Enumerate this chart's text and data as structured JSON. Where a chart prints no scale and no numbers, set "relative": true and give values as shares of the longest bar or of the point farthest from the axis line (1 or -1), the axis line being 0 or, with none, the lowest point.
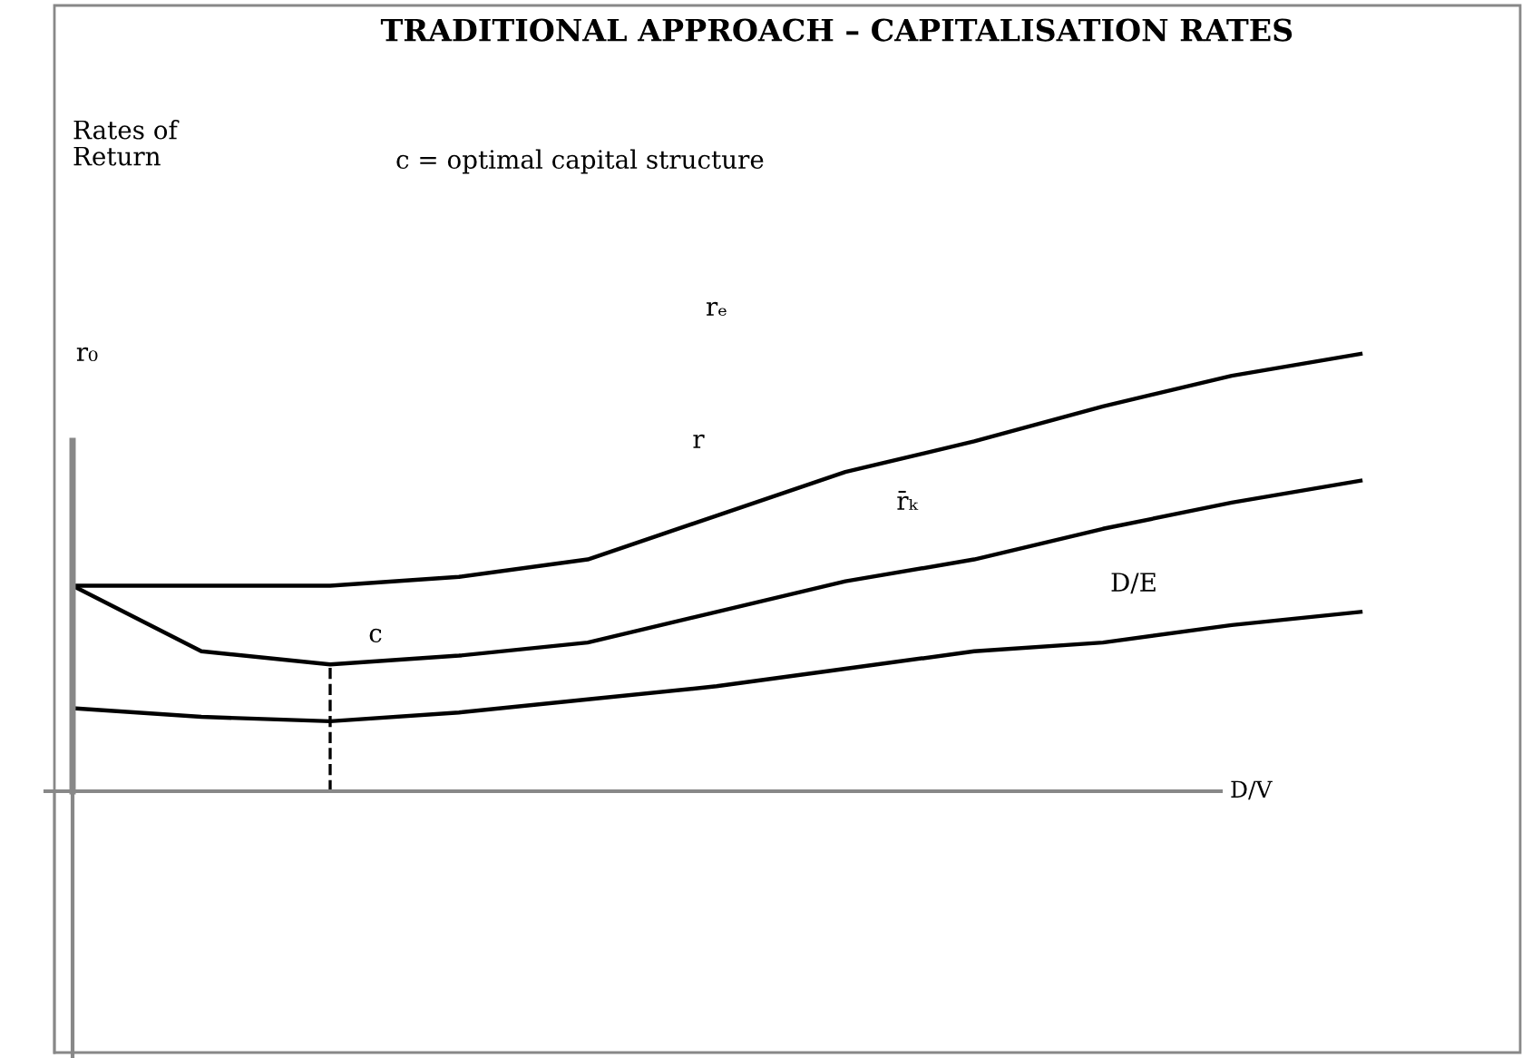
{
  "chart_data": {
    "type": "line",
    "title": "TRADITIONAL APPROACH – CAPITALISATION RATES",
    "subtitle": "c = optimal capital structure",
    "xlabel": "D/V",
    "relative": true,
    "categories": [
      null,
      null,
      null,
      null,
      null,
      null,
      null,
      null,
      null,
      null,
      null
    ],
    "series": [
      {
        "color": "#000000",
        "values": [
          0.47,
          0.47,
          0.47,
          0.49,
          0.53,
          0.63,
          0.73,
          0.8,
          0.88,
          0.95,
          1.0
        ]
      },
      {
        "color": "#000000",
        "values": [
          0.47,
          0.32,
          0.29,
          0.31,
          0.34,
          0.41,
          0.48,
          0.53,
          0.6,
          0.66,
          0.71
        ]
      },
      {
        "color": "#000000",
        "values": [
          0.19,
          0.17,
          0.16,
          0.18,
          0.21,
          0.24,
          0.28,
          0.32,
          0.34,
          0.38,
          0.41
        ]
      }
    ],
    "annotations": [
      "Rates of\nReturn",
      "rₑ",
      "r₀",
      "r",
      "r̄ₖ",
      "D/E",
      "c"
    ],
    "grid": false,
    "legend": false
  }
}
